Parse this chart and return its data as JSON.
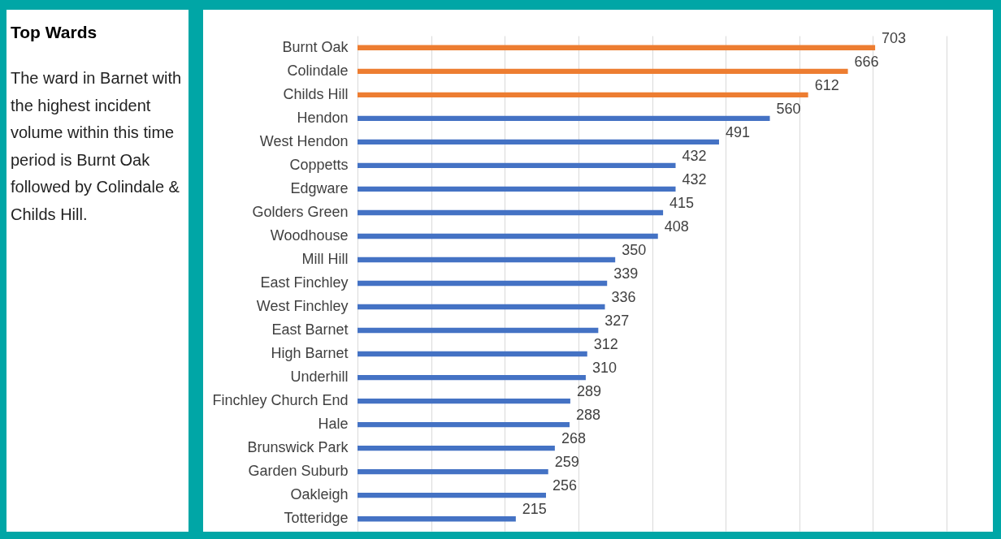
{
  "chart_data": {
    "type": "bar",
    "orientation": "horizontal",
    "title": "Top Wards",
    "annotations": [
      "The ward in Barnet with the highest incident volume within this time period is Burnt Oak followed by Colindale & Childs Hill."
    ],
    "categories": [
      "Burnt Oak",
      "Colindale",
      "Childs Hill",
      "Hendon",
      "West Hendon",
      "Coppetts",
      "Edgware",
      "Golders Green",
      "Woodhouse",
      "Mill Hill",
      "East Finchley",
      "West Finchley",
      "East Barnet",
      "High Barnet",
      "Underhill",
      "Finchley Church End",
      "Hale",
      "Brunswick Park",
      "Garden Suburb",
      "Oakleigh",
      "Totteridge"
    ],
    "values": [
      703,
      666,
      612,
      560,
      491,
      432,
      432,
      415,
      408,
      350,
      339,
      336,
      327,
      312,
      310,
      289,
      288,
      268,
      259,
      256,
      215
    ],
    "colors": [
      "#ed7d31",
      "#ed7d31",
      "#ed7d31",
      "#4472c4",
      "#4472c4",
      "#4472c4",
      "#4472c4",
      "#4472c4",
      "#4472c4",
      "#4472c4",
      "#4472c4",
      "#4472c4",
      "#4472c4",
      "#4472c4",
      "#4472c4",
      "#4472c4",
      "#4472c4",
      "#4472c4",
      "#4472c4",
      "#4472c4",
      "#4472c4"
    ],
    "xlim": [
      0,
      800
    ],
    "xticks": [
      {
        "value": 0,
        "label": null
      },
      {
        "value": 100,
        "label": null
      },
      {
        "value": 200,
        "label": null
      },
      {
        "value": 300,
        "label": null
      },
      {
        "value": 400,
        "label": null
      },
      {
        "value": 500,
        "label": null
      },
      {
        "value": 600,
        "label": null
      },
      {
        "value": 700,
        "label": null
      },
      {
        "value": 800,
        "label": null
      }
    ],
    "grid": "x",
    "tick_labels": "y",
    "data_labels": true
  }
}
